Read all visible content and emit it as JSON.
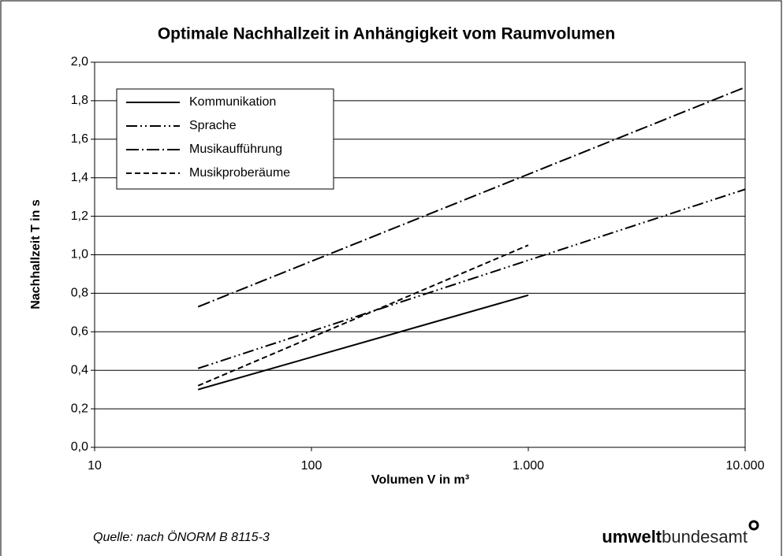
{
  "chart_data": {
    "type": "line",
    "title": "Optimale Nachhallzeit in Anhängigkeit vom Raumvolumen",
    "x_label": "Volumen V in m³",
    "y_label": "Nachhallzeit T in s",
    "xlog": true,
    "grid": true,
    "legend": "upper left",
    "xlim": [
      10,
      10000
    ],
    "xticks": [
      10,
      100,
      {
        "value": 1000,
        "label": "1.000"
      },
      {
        "value": 10000,
        "label": "10.000"
      }
    ],
    "ylim": [
      0,
      2
    ],
    "yticks": [
      {
        "value": 0,
        "label": "0,0"
      },
      {
        "value": 0.2,
        "label": "0,2"
      },
      {
        "value": 0.4,
        "label": "0,4"
      },
      {
        "value": 0.6,
        "label": "0,6"
      },
      {
        "value": 0.8,
        "label": "0,8"
      },
      {
        "value": 1.0,
        "label": "1,0"
      },
      {
        "value": 1.2,
        "label": "1,2"
      },
      {
        "value": 1.4,
        "label": "1,4"
      },
      {
        "value": 1.6,
        "label": "1,6"
      },
      {
        "value": 1.8,
        "label": "1,8"
      },
      {
        "value": 2.0,
        "label": "2,0"
      }
    ],
    "series": [
      {
        "name": "Kommunikation",
        "color": "#000000",
        "dash": "none",
        "x": [
          30,
          1000
        ],
        "values": [
          0.3,
          0.79
        ]
      },
      {
        "name": "Sprache",
        "color": "#000000",
        "dash": "14 4 2 4 2 4",
        "x": [
          30,
          10000
        ],
        "values": [
          0.41,
          1.34
        ]
      },
      {
        "name": "Musikaufführung",
        "color": "#000000",
        "dash": "16 4 2 4",
        "x": [
          30,
          10000
        ],
        "values": [
          0.73,
          1.87
        ]
      },
      {
        "name": "Musikproberäume",
        "color": "#000000",
        "dash": "7 4",
        "x": [
          30,
          1000
        ],
        "values": [
          0.32,
          1.05
        ]
      }
    ],
    "source": "Quelle: nach ÖNORM B 8115-3",
    "logo": {
      "bold": "umwelt",
      "regular": "bundesamt"
    }
  }
}
